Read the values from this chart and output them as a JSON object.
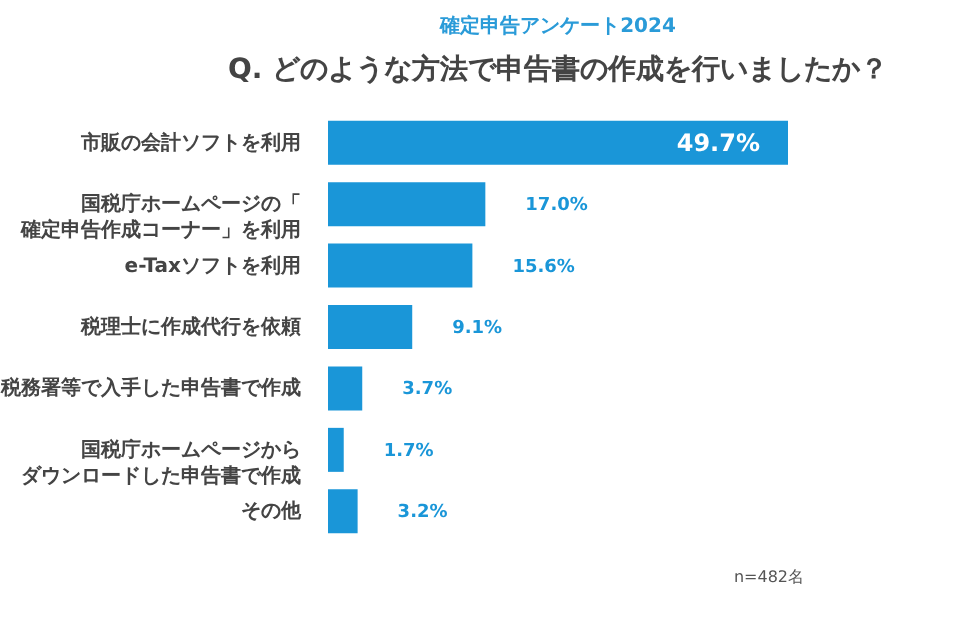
{
  "chart_data": {
    "type": "bar",
    "orientation": "horizontal",
    "title": "確定申告アンケート2024",
    "subtitle": "Q. どのような方法で申告書の作成を行いましたか？",
    "categories": [
      "市販の会計ソフトを利用",
      "国税庁ホームページの「確定申告作成コーナー」を利用",
      "e-Taxソフトを利用",
      "税理士に作成代行を依頼",
      "税務署等で入手した申告書で作成",
      "国税庁ホームページからダウンロードした申告書で作成",
      "その他"
    ],
    "values": [
      49.7,
      17.0,
      15.6,
      9.1,
      3.7,
      1.7,
      3.2
    ],
    "value_labels": [
      "49.7%",
      "17.0%",
      "15.6%",
      "9.1%",
      "3.7%",
      "1.7%",
      "3.2%"
    ],
    "color": "#1a96d8",
    "relative": false,
    "annotations": [
      "n=482名"
    ]
  }
}
